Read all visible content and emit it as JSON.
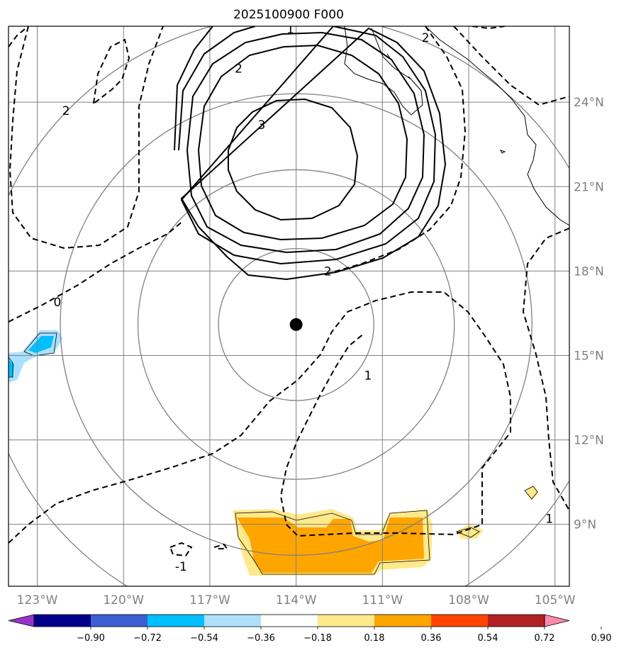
{
  "title": "2025100900 F000",
  "map": {
    "lon_range": [
      -124,
      -104.5
    ],
    "lat_range": [
      6.8,
      26.7
    ],
    "center": {
      "lon": -114.0,
      "lat": 16.1
    },
    "grid_lons": [
      -123,
      -120,
      -117,
      -114,
      -111,
      -108,
      -105
    ],
    "grid_lats": [
      9,
      12,
      15,
      18,
      21,
      24
    ],
    "lon_labels": [
      "123°W",
      "120°W",
      "117°W",
      "114°W",
      "111°W",
      "108°W",
      "105°W"
    ],
    "lat_labels": [
      "9°N",
      "12°N",
      "15°N",
      "18°N",
      "21°N",
      "24°N"
    ],
    "range_rings_deg": [
      2.7,
      5.5,
      8.2,
      11.0
    ],
    "contour_labels": [
      {
        "text": "1",
        "lon": -114.2,
        "lat": 26.6
      },
      {
        "text": "2",
        "lon": -116.0,
        "lat": 25.2
      },
      {
        "text": "3",
        "lon": -115.2,
        "lat": 23.2
      },
      {
        "text": "2",
        "lon": -112.9,
        "lat": 18.0
      },
      {
        "text": "0",
        "lon": -122.3,
        "lat": 16.9
      },
      {
        "text": "1",
        "lon": -111.5,
        "lat": 14.3
      },
      {
        "text": "2",
        "lon": -122.0,
        "lat": 23.7
      },
      {
        "text": "-1",
        "lon": -118.0,
        "lat": 7.5
      },
      {
        "text": "2",
        "lon": -109.5,
        "lat": 26.3
      },
      {
        "text": "1",
        "lon": -105.2,
        "lat": 9.2
      }
    ],
    "colors": {
      "grid": "#808080",
      "ring": "#808080",
      "contour": "#000000",
      "positive_low": "#ffe98a",
      "positive_mid": "#ffa500",
      "negative_low": "#a9e0ff",
      "negative_mid": "#00bfff"
    }
  },
  "colorbar": {
    "ticks": [
      "−0.90",
      "−0.72",
      "−0.54",
      "−0.36",
      "−0.18",
      "0.18",
      "0.36",
      "0.54",
      "0.72",
      "0.90"
    ],
    "colors": [
      "#9932cc",
      "#00008b",
      "#3b5fd4",
      "#00bfff",
      "#ade0fb",
      "#ffffff",
      "#ffe98a",
      "#ffa500",
      "#ff4500",
      "#b22222",
      "#ff88ab"
    ]
  }
}
